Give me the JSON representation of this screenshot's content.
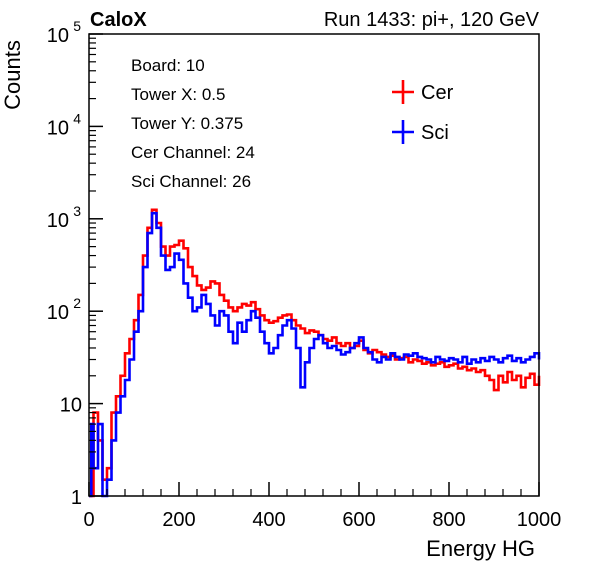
{
  "header": {
    "experiment": "CaloX",
    "run_info": "Run 1433: pi+, 120 GeV"
  },
  "info_box": {
    "lines": [
      "Board: 10",
      "Tower X: 0.5",
      "Tower Y: 0.375",
      "Cer Channel: 24",
      "Sci Channel: 26"
    ]
  },
  "chart_data": {
    "type": "line",
    "title": "",
    "xlabel": "Energy HG",
    "ylabel": "Counts",
    "xlim": [
      0,
      1000
    ],
    "ylim": [
      1,
      100000
    ],
    "y_scale": "log",
    "x_ticks": [
      "0",
      "200",
      "400",
      "600",
      "800",
      "1000"
    ],
    "y_ticks": [
      {
        "value": 1,
        "base": "1",
        "exp": ""
      },
      {
        "value": 10,
        "base": "10",
        "exp": ""
      },
      {
        "value": 100,
        "base": "10",
        "exp": "2"
      },
      {
        "value": 1000,
        "base": "10",
        "exp": "3"
      },
      {
        "value": 10000,
        "base": "10",
        "exp": "4"
      },
      {
        "value": 100000,
        "base": "10",
        "exp": "5"
      }
    ],
    "legend_position": "top-right",
    "series": [
      {
        "name": "Cer",
        "color": "#ff0000",
        "points": [
          [
            0,
            1
          ],
          [
            10,
            8
          ],
          [
            20,
            4
          ],
          [
            30,
            1.5
          ],
          [
            40,
            2
          ],
          [
            50,
            8
          ],
          [
            60,
            12
          ],
          [
            70,
            20
          ],
          [
            80,
            35
          ],
          [
            90,
            50
          ],
          [
            100,
            80
          ],
          [
            110,
            150
          ],
          [
            120,
            400
          ],
          [
            130,
            800
          ],
          [
            140,
            1250
          ],
          [
            150,
            900
          ],
          [
            160,
            500
          ],
          [
            170,
            400
          ],
          [
            180,
            500
          ],
          [
            190,
            520
          ],
          [
            200,
            580
          ],
          [
            210,
            480
          ],
          [
            220,
            300
          ],
          [
            230,
            240
          ],
          [
            240,
            190
          ],
          [
            250,
            170
          ],
          [
            260,
            180
          ],
          [
            270,
            210
          ],
          [
            280,
            200
          ],
          [
            290,
            150
          ],
          [
            300,
            130
          ],
          [
            310,
            110
          ],
          [
            320,
            100
          ],
          [
            330,
            110
          ],
          [
            340,
            120
          ],
          [
            350,
            115
          ],
          [
            360,
            125
          ],
          [
            370,
            105
          ],
          [
            380,
            90
          ],
          [
            390,
            80
          ],
          [
            400,
            75
          ],
          [
            410,
            78
          ],
          [
            420,
            85
          ],
          [
            430,
            90
          ],
          [
            440,
            92
          ],
          [
            450,
            80
          ],
          [
            460,
            70
          ],
          [
            470,
            65
          ],
          [
            480,
            58
          ],
          [
            490,
            62
          ],
          [
            500,
            60
          ],
          [
            510,
            55
          ],
          [
            520,
            50
          ],
          [
            530,
            48
          ],
          [
            540,
            52
          ],
          [
            550,
            45
          ],
          [
            560,
            42
          ],
          [
            570,
            45
          ],
          [
            580,
            40
          ],
          [
            590,
            42
          ],
          [
            600,
            48
          ],
          [
            610,
            38
          ],
          [
            620,
            35
          ],
          [
            630,
            38
          ],
          [
            640,
            36
          ],
          [
            650,
            34
          ],
          [
            660,
            32
          ],
          [
            670,
            33
          ],
          [
            680,
            30
          ],
          [
            690,
            31
          ],
          [
            700,
            32
          ],
          [
            710,
            28
          ],
          [
            720,
            30
          ],
          [
            730,
            29
          ],
          [
            740,
            27
          ],
          [
            750,
            28
          ],
          [
            760,
            26
          ],
          [
            770,
            27
          ],
          [
            780,
            28
          ],
          [
            790,
            25
          ],
          [
            800,
            26
          ],
          [
            810,
            27
          ],
          [
            820,
            24
          ],
          [
            830,
            25
          ],
          [
            840,
            23
          ],
          [
            850,
            24
          ],
          [
            860,
            22
          ],
          [
            870,
            23
          ],
          [
            880,
            20
          ],
          [
            890,
            18
          ],
          [
            900,
            14
          ],
          [
            910,
            20
          ],
          [
            920,
            17
          ],
          [
            930,
            22
          ],
          [
            940,
            18
          ],
          [
            950,
            20
          ],
          [
            960,
            15
          ],
          [
            970,
            19
          ],
          [
            980,
            21
          ],
          [
            990,
            16
          ],
          [
            1000,
            20
          ]
        ]
      },
      {
        "name": "Sci",
        "color": "#0000ff",
        "points": [
          [
            0,
            1
          ],
          [
            5,
            6
          ],
          [
            10,
            2
          ],
          [
            20,
            6
          ],
          [
            30,
            1
          ],
          [
            40,
            1.5
          ],
          [
            50,
            4
          ],
          [
            60,
            8
          ],
          [
            70,
            12
          ],
          [
            80,
            18
          ],
          [
            90,
            30
          ],
          [
            100,
            60
          ],
          [
            110,
            100
          ],
          [
            120,
            300
          ],
          [
            130,
            700
          ],
          [
            140,
            1150
          ],
          [
            150,
            800
          ],
          [
            160,
            400
          ],
          [
            170,
            280
          ],
          [
            180,
            300
          ],
          [
            190,
            420
          ],
          [
            200,
            360
          ],
          [
            210,
            200
          ],
          [
            220,
            140
          ],
          [
            230,
            100
          ],
          [
            240,
            110
          ],
          [
            250,
            150
          ],
          [
            260,
            120
          ],
          [
            270,
            90
          ],
          [
            280,
            70
          ],
          [
            290,
            100
          ],
          [
            300,
            90
          ],
          [
            310,
            60
          ],
          [
            320,
            45
          ],
          [
            330,
            75
          ],
          [
            340,
            60
          ],
          [
            350,
            80
          ],
          [
            360,
            100
          ],
          [
            370,
            85
          ],
          [
            380,
            60
          ],
          [
            390,
            45
          ],
          [
            400,
            35
          ],
          [
            410,
            40
          ],
          [
            420,
            55
          ],
          [
            430,
            70
          ],
          [
            440,
            80
          ],
          [
            450,
            65
          ],
          [
            460,
            40
          ],
          [
            470,
            15
          ],
          [
            480,
            28
          ],
          [
            490,
            40
          ],
          [
            500,
            50
          ],
          [
            510,
            55
          ],
          [
            520,
            45
          ],
          [
            530,
            40
          ],
          [
            540,
            42
          ],
          [
            550,
            38
          ],
          [
            560,
            34
          ],
          [
            570,
            36
          ],
          [
            580,
            40
          ],
          [
            590,
            45
          ],
          [
            600,
            52
          ],
          [
            610,
            40
          ],
          [
            620,
            36
          ],
          [
            630,
            30
          ],
          [
            640,
            28
          ],
          [
            650,
            32
          ],
          [
            660,
            30
          ],
          [
            670,
            35
          ],
          [
            680,
            32
          ],
          [
            690,
            30
          ],
          [
            700,
            34
          ],
          [
            710,
            33
          ],
          [
            720,
            35
          ],
          [
            730,
            32
          ],
          [
            740,
            31
          ],
          [
            750,
            30
          ],
          [
            760,
            28
          ],
          [
            770,
            32
          ],
          [
            780,
            30
          ],
          [
            790,
            29
          ],
          [
            800,
            31
          ],
          [
            810,
            30
          ],
          [
            820,
            28
          ],
          [
            830,
            32
          ],
          [
            840,
            27
          ],
          [
            850,
            30
          ],
          [
            860,
            28
          ],
          [
            870,
            31
          ],
          [
            880,
            29
          ],
          [
            890,
            32
          ],
          [
            900,
            30
          ],
          [
            910,
            28
          ],
          [
            920,
            31
          ],
          [
            930,
            33
          ],
          [
            940,
            29
          ],
          [
            950,
            31
          ],
          [
            960,
            28
          ],
          [
            970,
            30
          ],
          [
            980,
            32
          ],
          [
            990,
            35
          ],
          [
            1000,
            30
          ]
        ]
      }
    ]
  }
}
